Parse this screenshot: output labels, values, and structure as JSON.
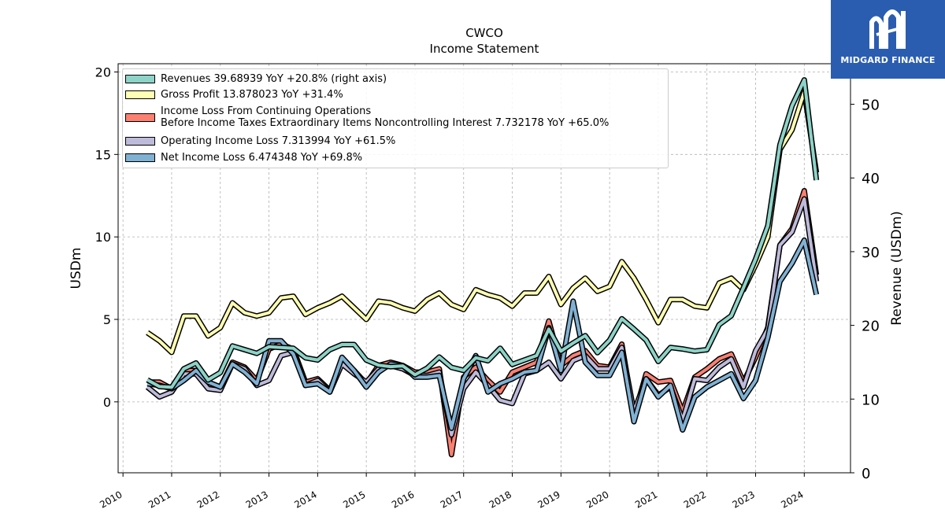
{
  "brand": {
    "name": "MIDGARD FINANCE",
    "bg_color": "#2a5db0"
  },
  "chart_data": {
    "type": "line",
    "title": "CWCO",
    "subtitle": "Income Statement",
    "ylabel": "USDm",
    "y2label": "Revenue (USDm)",
    "ylim": [
      -4.3,
      20.5
    ],
    "y2lim": [
      0,
      55.5
    ],
    "yticks": [
      0,
      5,
      10,
      15,
      20
    ],
    "y2ticks": [
      0,
      10,
      20,
      30,
      40,
      50
    ],
    "xlim": [
      2009.9,
      2024.95
    ],
    "xticks": [
      "2010",
      "2011",
      "2012",
      "2013",
      "2014",
      "2015",
      "2016",
      "2017",
      "2018",
      "2019",
      "2020",
      "2021",
      "2022",
      "2023",
      "2024"
    ],
    "grid": true,
    "legend_position": "top-left",
    "x": [
      2010.5,
      2010.75,
      2011.0,
      2011.25,
      2011.5,
      2011.75,
      2012.0,
      2012.25,
      2012.5,
      2012.75,
      2013.0,
      2013.25,
      2013.5,
      2013.75,
      2014.0,
      2014.25,
      2014.5,
      2014.75,
      2015.0,
      2015.25,
      2015.5,
      2015.75,
      2016.0,
      2016.25,
      2016.5,
      2016.75,
      2017.0,
      2017.25,
      2017.5,
      2017.75,
      2018.0,
      2018.25,
      2018.5,
      2018.75,
      2019.0,
      2019.25,
      2019.5,
      2019.75,
      2020.0,
      2020.25,
      2020.5,
      2020.75,
      2021.0,
      2021.25,
      2021.5,
      2021.75,
      2022.0,
      2022.25,
      2022.5,
      2022.75,
      2023.0,
      2023.25,
      2023.5,
      2023.75,
      2024.0,
      2024.25
    ],
    "series": [
      {
        "name": "Revenues  39.68939 YoY +20.8% (right axis)",
        "axis": "right",
        "color": "#8dd3c7",
        "values": [
          12.6,
          11.7,
          11.6,
          14.1,
          14.9,
          12.6,
          13.6,
          17.2,
          16.7,
          16.2,
          17.1,
          17.0,
          16.9,
          15.6,
          15.3,
          16.7,
          17.4,
          17.4,
          15.3,
          14.6,
          14.4,
          14.5,
          13.3,
          14.2,
          15.7,
          14.3,
          13.9,
          15.6,
          15.2,
          16.9,
          14.7,
          15.3,
          15.9,
          19.5,
          16.5,
          17.6,
          18.6,
          16.3,
          18.0,
          20.9,
          19.5,
          18.0,
          15.1,
          17.0,
          16.8,
          16.5,
          16.7,
          20.1,
          21.3,
          25.1,
          29.0,
          33.5,
          44.5,
          49.8,
          53.3,
          39.7
        ]
      },
      {
        "name": "Gross Profit  13.878023 YoY +31.4%",
        "axis": "left",
        "color": "#ffffb3",
        "values": [
          4.2,
          3.7,
          3.0,
          5.2,
          5.2,
          4.0,
          4.5,
          6.0,
          5.4,
          5.2,
          5.4,
          6.3,
          6.4,
          5.3,
          5.7,
          6.0,
          6.4,
          5.7,
          5.0,
          6.1,
          6.0,
          5.7,
          5.5,
          6.2,
          6.6,
          5.9,
          5.6,
          6.8,
          6.5,
          6.3,
          5.8,
          6.6,
          6.6,
          7.6,
          5.9,
          6.9,
          7.5,
          6.7,
          7.0,
          8.5,
          7.5,
          6.2,
          4.8,
          6.2,
          6.2,
          5.8,
          5.7,
          7.2,
          7.5,
          6.8,
          8.3,
          10.0,
          15.3,
          16.5,
          18.8,
          13.9
        ]
      },
      {
        "name": "Income Loss From Continuing Operations\nBefore Income Taxes Extraordinary Items Noncontrolling Interest  7.732178 YoY +65.0%",
        "axis": "left",
        "color": "#fb8072",
        "values": [
          1.2,
          1.2,
          0.8,
          1.9,
          1.9,
          1.2,
          0.9,
          2.4,
          2.1,
          1.3,
          3.2,
          3.5,
          3.2,
          1.2,
          1.4,
          0.7,
          2.5,
          1.9,
          1.1,
          2.2,
          2.4,
          2.2,
          1.8,
          1.8,
          2.0,
          -3.2,
          1.5,
          2.1,
          1.3,
          0.6,
          1.8,
          2.1,
          2.4,
          4.9,
          2.2,
          2.8,
          3.1,
          2.2,
          2.1,
          3.5,
          -0.9,
          1.7,
          1.2,
          1.3,
          -0.6,
          1.5,
          2.0,
          2.6,
          2.9,
          1.2,
          2.7,
          4.5,
          9.5,
          10.5,
          12.8,
          7.7
        ]
      },
      {
        "name": "Operating Income Loss  7.313994 YoY +61.5%",
        "axis": "left",
        "color": "#bebada",
        "values": [
          0.9,
          0.3,
          0.6,
          1.7,
          1.7,
          0.8,
          0.7,
          2.3,
          2.0,
          1.0,
          1.3,
          2.8,
          3.0,
          1.0,
          1.3,
          0.6,
          2.3,
          1.7,
          1.2,
          2.0,
          2.2,
          2.0,
          1.6,
          1.6,
          1.8,
          -2.0,
          0.8,
          1.8,
          1.0,
          0.1,
          -0.1,
          1.7,
          1.9,
          2.4,
          1.4,
          2.5,
          2.8,
          2.0,
          2.0,
          3.3,
          -0.6,
          1.4,
          0.4,
          0.9,
          -1.1,
          1.4,
          1.3,
          2.1,
          2.6,
          0.9,
          3.1,
          4.4,
          9.5,
          10.3,
          12.3,
          7.3
        ]
      },
      {
        "name": "Net Income Loss  6.474348 YoY +69.8%",
        "axis": "left",
        "color": "#80b1d3",
        "values": [
          1.1,
          1.0,
          0.8,
          1.3,
          1.9,
          1.2,
          0.9,
          2.3,
          1.8,
          1.1,
          3.7,
          3.7,
          2.9,
          1.0,
          1.1,
          0.6,
          2.7,
          1.9,
          0.9,
          1.8,
          2.3,
          2.2,
          1.5,
          1.5,
          1.6,
          -1.6,
          1.4,
          2.8,
          0.6,
          1.1,
          1.4,
          1.8,
          1.9,
          4.5,
          1.9,
          6.1,
          2.4,
          1.6,
          1.6,
          3.0,
          -1.2,
          1.4,
          0.3,
          1.0,
          -1.7,
          0.3,
          0.9,
          1.3,
          1.7,
          0.2,
          1.3,
          3.9,
          7.3,
          8.4,
          9.8,
          6.5
        ]
      }
    ]
  }
}
